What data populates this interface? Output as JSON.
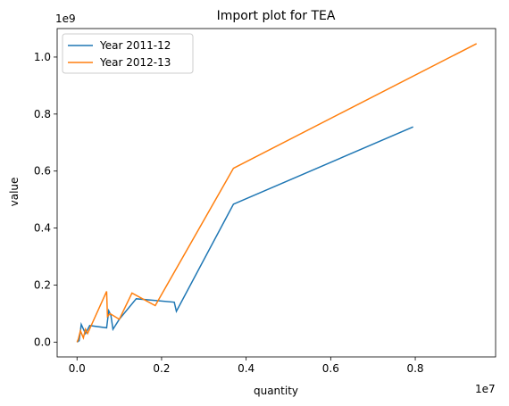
{
  "chart_data": {
    "type": "line",
    "title": "Import plot for TEA",
    "xlabel": "quantity",
    "ylabel": "value",
    "x_offset": "1e7",
    "y_offset": "1e9",
    "series": [
      {
        "name": "Year 2011-12",
        "color": "#1f77b4",
        "x": [
          0,
          50000,
          100000,
          200000,
          300000,
          700000,
          750000,
          800000,
          850000,
          1000000,
          1400000,
          2300000,
          2350000,
          3700000,
          7950000
        ],
        "values": [
          0,
          5000000,
          62000000,
          30000000,
          58000000,
          50000000,
          110000000,
          95000000,
          45000000,
          80000000,
          152000000,
          140000000,
          108000000,
          484000000,
          755000000
        ]
      },
      {
        "name": "Year 2012-13",
        "color": "#ff7f0e",
        "x": [
          0,
          30000,
          80000,
          150000,
          200000,
          250000,
          700000,
          720000,
          780000,
          1000000,
          1300000,
          1850000,
          3700000,
          9450000
        ],
        "values": [
          0,
          10000000,
          40000000,
          15000000,
          45000000,
          30000000,
          178000000,
          90000000,
          100000000,
          80000000,
          172000000,
          128000000,
          610000000,
          1047000000
        ]
      }
    ],
    "xlim": [
      -470000,
      9900000
    ],
    "xticks": [
      {
        "value": 0,
        "label": "0.0"
      },
      {
        "value": 2000000,
        "label": "0.2"
      },
      {
        "value": 4000000,
        "label": "0.4"
      },
      {
        "value": 6000000,
        "label": "0.6"
      },
      {
        "value": 8000000,
        "label": "0.8"
      }
    ],
    "ylim": [
      -52000000,
      1100000000
    ],
    "yticks": [
      {
        "value": 0,
        "label": "0.0"
      },
      {
        "value": 200000000,
        "label": "0.2"
      },
      {
        "value": 400000000,
        "label": "0.4"
      },
      {
        "value": 600000000,
        "label": "0.6"
      },
      {
        "value": 800000000,
        "label": "0.8"
      },
      {
        "value": 1000000000,
        "label": "1.0"
      }
    ],
    "legend": "upper left"
  }
}
